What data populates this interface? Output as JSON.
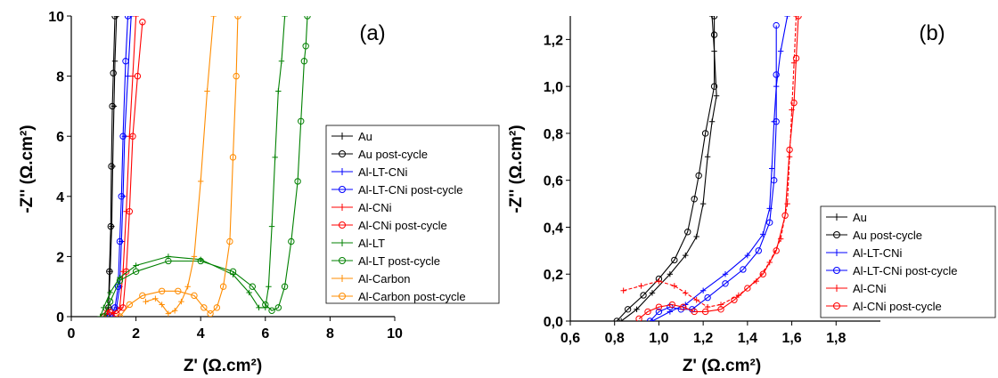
{
  "chart_data": [
    {
      "type": "line",
      "panel_label": "(a)",
      "xlabel": "Z' (Ω.cm²)",
      "ylabel": "-Z'' (Ω.cm²)",
      "xlim": [
        0,
        10
      ],
      "ylim": [
        0,
        10
      ],
      "xticks": [
        "0",
        "2",
        "4",
        "6",
        "8",
        "10"
      ],
      "yticks": [
        "0",
        "2",
        "4",
        "6",
        "8",
        "10"
      ],
      "legend_position": "right",
      "series": [
        {
          "name": "Au",
          "color": "#000000",
          "marker": "plus",
          "points": [
            [
              1.1,
              0
            ],
            [
              1.15,
              0.3
            ],
            [
              1.2,
              1.5
            ],
            [
              1.25,
              3
            ],
            [
              1.28,
              5
            ],
            [
              1.32,
              7
            ],
            [
              1.35,
              8.5
            ],
            [
              1.4,
              10
            ]
          ]
        },
        {
          "name": "Au post-cycle",
          "color": "#000000",
          "marker": "circle",
          "points": [
            [
              1.1,
              0
            ],
            [
              1.15,
              0.3
            ],
            [
              1.18,
              1.5
            ],
            [
              1.22,
              3
            ],
            [
              1.24,
              5
            ],
            [
              1.27,
              7
            ],
            [
              1.3,
              8.1
            ],
            [
              1.35,
              10
            ]
          ]
        },
        {
          "name": "Al-LT-CNi",
          "color": "#0000ff",
          "marker": "plus",
          "points": [
            [
              1.3,
              0
            ],
            [
              1.4,
              0.3
            ],
            [
              1.5,
              1
            ],
            [
              1.55,
              2.5
            ],
            [
              1.6,
              4
            ],
            [
              1.65,
              6
            ],
            [
              1.75,
              8
            ],
            [
              1.85,
              10
            ]
          ]
        },
        {
          "name": "Al-LT-CNi post-cycle",
          "color": "#0000ff",
          "marker": "circle",
          "points": [
            [
              1.2,
              0
            ],
            [
              1.35,
              0.3
            ],
            [
              1.45,
              1
            ],
            [
              1.5,
              2.5
            ],
            [
              1.55,
              4
            ],
            [
              1.6,
              6
            ],
            [
              1.68,
              8.5
            ],
            [
              1.75,
              10
            ]
          ]
        },
        {
          "name": "Al-CNi",
          "color": "#ff0000",
          "marker": "plus",
          "points": [
            [
              0.9,
              0
            ],
            [
              1.1,
              0.2
            ],
            [
              1.3,
              0.1
            ],
            [
              1.5,
              0.3
            ],
            [
              1.6,
              1.5
            ],
            [
              1.7,
              3.5
            ],
            [
              1.8,
              6
            ],
            [
              1.9,
              8
            ],
            [
              2.0,
              10
            ]
          ]
        },
        {
          "name": "Al-CNi post-cycle",
          "color": "#ff0000",
          "marker": "circle",
          "points": [
            [
              1.0,
              0
            ],
            [
              1.2,
              0.15
            ],
            [
              1.4,
              0.1
            ],
            [
              1.6,
              0.3
            ],
            [
              1.7,
              1.5
            ],
            [
              1.8,
              3.5
            ],
            [
              1.9,
              6
            ],
            [
              2.05,
              8
            ],
            [
              2.2,
              9.8
            ]
          ]
        },
        {
          "name": "Al-LT",
          "color": "#008000",
          "marker": "plus",
          "points": [
            [
              0.9,
              0
            ],
            [
              1.0,
              0.3
            ],
            [
              1.2,
              0.8
            ],
            [
              1.5,
              1.3
            ],
            [
              2,
              1.7
            ],
            [
              3,
              2.0
            ],
            [
              4,
              1.9
            ],
            [
              5,
              1.4
            ],
            [
              5.5,
              0.8
            ],
            [
              5.8,
              0.3
            ],
            [
              6,
              0.3
            ],
            [
              6.1,
              1
            ],
            [
              6.2,
              3
            ],
            [
              6.3,
              5.3
            ],
            [
              6.4,
              7.5
            ],
            [
              6.5,
              8.5
            ],
            [
              6.6,
              10
            ]
          ]
        },
        {
          "name": "Al-LT post-cycle",
          "color": "#008000",
          "marker": "circle",
          "points": [
            [
              1.0,
              0
            ],
            [
              1.2,
              0.5
            ],
            [
              1.5,
              1.2
            ],
            [
              2,
              1.5
            ],
            [
              3,
              1.85
            ],
            [
              4,
              1.85
            ],
            [
              5,
              1.5
            ],
            [
              5.6,
              1.0
            ],
            [
              6.0,
              0.4
            ],
            [
              6.2,
              0.2
            ],
            [
              6.4,
              0.3
            ],
            [
              6.6,
              1
            ],
            [
              6.8,
              2.5
            ],
            [
              7.0,
              4.5
            ],
            [
              7.1,
              6.5
            ],
            [
              7.2,
              8.5
            ],
            [
              7.25,
              9.0
            ],
            [
              7.3,
              10
            ]
          ]
        },
        {
          "name": "Al-Carbon",
          "color": "#ff8c00",
          "marker": "plus",
          "points": [
            [
              2.3,
              0.5
            ],
            [
              2.6,
              0.6
            ],
            [
              2.8,
              0.4
            ],
            [
              3.0,
              0.1
            ],
            [
              3.2,
              0.2
            ],
            [
              3.4,
              0.5
            ],
            [
              3.6,
              1.0
            ],
            [
              3.8,
              2.0
            ],
            [
              4.0,
              4.5
            ],
            [
              4.2,
              7.5
            ],
            [
              4.4,
              10
            ]
          ]
        },
        {
          "name": "Al-Carbon post-cycle",
          "color": "#ff8c00",
          "marker": "circle",
          "points": [
            [
              1.5,
              0
            ],
            [
              1.8,
              0.4
            ],
            [
              2.2,
              0.7
            ],
            [
              2.8,
              0.85
            ],
            [
              3.3,
              0.85
            ],
            [
              3.8,
              0.7
            ],
            [
              4.1,
              0.3
            ],
            [
              4.3,
              0.1
            ],
            [
              4.5,
              0.3
            ],
            [
              4.7,
              1
            ],
            [
              4.9,
              2.5
            ],
            [
              5.0,
              5.3
            ],
            [
              5.1,
              8
            ],
            [
              5.15,
              10
            ]
          ]
        }
      ]
    },
    {
      "type": "line",
      "panel_label": "(b)",
      "xlabel": "Z' (Ω.cm²)",
      "ylabel": "-Z'' (Ω.cm²)",
      "xlim": [
        0.6,
        2.0
      ],
      "ylim": [
        0,
        1.3
      ],
      "xticks": [
        "0,6",
        "0,8",
        "1,0",
        "1,2",
        "1,4",
        "1,6",
        "1,8"
      ],
      "yticks": [
        "0,0",
        "0,2",
        "0,4",
        "0,6",
        "0,8",
        "1,0",
        "1,2"
      ],
      "legend_position": "center-right",
      "series": [
        {
          "name": "Au",
          "color": "#000000",
          "marker": "plus",
          "points": [
            [
              0.83,
              0
            ],
            [
              0.9,
              0.05
            ],
            [
              0.97,
              0.12
            ],
            [
              1.05,
              0.2
            ],
            [
              1.12,
              0.28
            ],
            [
              1.17,
              0.36
            ],
            [
              1.2,
              0.5
            ],
            [
              1.22,
              0.7
            ],
            [
              1.24,
              0.85
            ],
            [
              1.26,
              0.96
            ],
            [
              1.25,
              1.15
            ],
            [
              1.24,
              1.3
            ]
          ]
        },
        {
          "name": "Au post-cycle",
          "color": "#000000",
          "marker": "circle",
          "points": [
            [
              0.81,
              0
            ],
            [
              0.86,
              0.05
            ],
            [
              0.93,
              0.11
            ],
            [
              1.0,
              0.18
            ],
            [
              1.07,
              0.26
            ],
            [
              1.13,
              0.38
            ],
            [
              1.16,
              0.52
            ],
            [
              1.18,
              0.62
            ],
            [
              1.21,
              0.8
            ],
            [
              1.25,
              1.0
            ],
            [
              1.25,
              1.22
            ],
            [
              1.25,
              1.3
            ]
          ]
        },
        {
          "name": "Al-LT-CNi",
          "color": "#0000ff",
          "marker": "plus",
          "points": [
            [
              0.97,
              0
            ],
            [
              1.05,
              0.04
            ],
            [
              1.12,
              0.07
            ],
            [
              1.2,
              0.13
            ],
            [
              1.3,
              0.2
            ],
            [
              1.4,
              0.28
            ],
            [
              1.47,
              0.37
            ],
            [
              1.5,
              0.48
            ],
            [
              1.51,
              0.65
            ],
            [
              1.52,
              0.85
            ],
            [
              1.53,
              1.0
            ],
            [
              1.55,
              1.15
            ],
            [
              1.58,
              1.3
            ]
          ]
        },
        {
          "name": "Al-LT-CNi post-cycle",
          "color": "#0000ff",
          "marker": "circle",
          "points": [
            [
              0.96,
              0
            ],
            [
              1.0,
              0.04
            ],
            [
              1.05,
              0.06
            ],
            [
              1.1,
              0.05
            ],
            [
              1.15,
              0.05
            ],
            [
              1.22,
              0.1
            ],
            [
              1.3,
              0.16
            ],
            [
              1.38,
              0.22
            ],
            [
              1.45,
              0.3
            ],
            [
              1.5,
              0.42
            ],
            [
              1.52,
              0.6
            ],
            [
              1.53,
              0.85
            ],
            [
              1.53,
              1.05
            ],
            [
              1.53,
              1.26
            ]
          ]
        },
        {
          "name": "Al-CNi",
          "color": "#ff0000",
          "marker": "plus",
          "points": [
            [
              0.84,
              0.13
            ],
            [
              0.92,
              0.15
            ],
            [
              1.0,
              0.17
            ],
            [
              1.07,
              0.15
            ],
            [
              1.12,
              0.12
            ],
            [
              1.17,
              0.09
            ],
            [
              1.22,
              0.06
            ],
            [
              1.28,
              0.07
            ],
            [
              1.36,
              0.11
            ],
            [
              1.44,
              0.17
            ],
            [
              1.5,
              0.25
            ],
            [
              1.55,
              0.35
            ],
            [
              1.58,
              0.5
            ],
            [
              1.59,
              0.7
            ],
            [
              1.6,
              0.9
            ],
            [
              1.61,
              1.1
            ],
            [
              1.62,
              1.3
            ]
          ]
        },
        {
          "name": "Al-CNi post-cycle",
          "color": "#ff0000",
          "marker": "circle",
          "points": [
            [
              0.91,
              0.01
            ],
            [
              0.95,
              0.04
            ],
            [
              1.0,
              0.06
            ],
            [
              1.06,
              0.07
            ],
            [
              1.11,
              0.06
            ],
            [
              1.16,
              0.04
            ],
            [
              1.21,
              0.04
            ],
            [
              1.28,
              0.05
            ],
            [
              1.34,
              0.09
            ],
            [
              1.4,
              0.14
            ],
            [
              1.47,
              0.2
            ],
            [
              1.53,
              0.3
            ],
            [
              1.57,
              0.45
            ],
            [
              1.59,
              0.73
            ],
            [
              1.61,
              0.93
            ],
            [
              1.62,
              1.12
            ],
            [
              1.63,
              1.3
            ]
          ]
        }
      ]
    }
  ]
}
